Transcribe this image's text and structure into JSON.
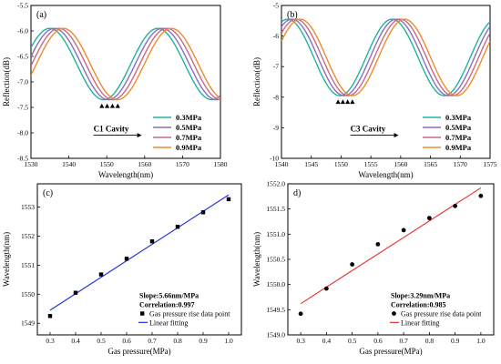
{
  "chart_data": [
    {
      "panel": "(a)",
      "type": "line",
      "xlabel": "Wavelength(nm)",
      "ylabel": "Reflection(dB)",
      "xlim": [
        1530,
        1580
      ],
      "ylim": [
        -8.5,
        -5.5
      ],
      "xticks": [
        "1530",
        "1540",
        "1550",
        "1560",
        "1570",
        "1580"
      ],
      "yticks": [
        "-8.5",
        "-8.0",
        "-7.5",
        "-7.0",
        "-6.5",
        "-6.0",
        "-5.5"
      ],
      "model": {
        "period_nm": 28.5,
        "min_db": -7.35,
        "max_db": -5.95
      },
      "series": [
        {
          "name": "0.3MPa",
          "color": "#1bb597",
          "dip_nm": 1549.2
        },
        {
          "name": "0.5MPa",
          "color": "#8a6cc8",
          "dip_nm": 1550.4
        },
        {
          "name": "0.7MPa",
          "color": "#c86a82",
          "dip_nm": 1551.6
        },
        {
          "name": "0.9MPa",
          "color": "#ef8a2b",
          "dip_nm": 1552.8
        }
      ],
      "markers": [
        {
          "x": 1548.7,
          "y": -7.47
        },
        {
          "x": 1550.1,
          "y": -7.47
        },
        {
          "x": 1551.5,
          "y": -7.47
        },
        {
          "x": 1552.9,
          "y": -7.47
        }
      ],
      "annotation": "C1 Cavity",
      "legend": "bottom-right"
    },
    {
      "panel": "(b)",
      "type": "line",
      "xlabel": "Wavelength(nm)",
      "ylabel": "Reflection(dB)",
      "xlim": [
        1540,
        1575
      ],
      "ylim": [
        -10,
        -5
      ],
      "xticks": [
        "1540",
        "1545",
        "1550",
        "1555",
        "1560",
        "1565",
        "1570",
        "1575"
      ],
      "yticks": [
        "-10",
        "-9",
        "-8",
        "-7",
        "-6",
        "-5"
      ],
      "model": {
        "period_nm": 17.5,
        "min_db": -7.95,
        "max_db": -5.45
      },
      "series": [
        {
          "name": "0.3MPa",
          "color": "#1bb597",
          "dip_nm": 1549.8
        },
        {
          "name": "0.5MPa",
          "color": "#8a6cc8",
          "dip_nm": 1550.5
        },
        {
          "name": "0.7MPa",
          "color": "#c86a82",
          "dip_nm": 1551.2
        },
        {
          "name": "0.9MPa",
          "color": "#ef8a2b",
          "dip_nm": 1551.9
        }
      ],
      "markers": [
        {
          "x": 1549.5,
          "y": -8.15
        },
        {
          "x": 1550.3,
          "y": -8.15
        },
        {
          "x": 1551.1,
          "y": -8.15
        },
        {
          "x": 1551.9,
          "y": -8.15
        }
      ],
      "annotation": "C3 Cavity",
      "legend": "bottom-right"
    },
    {
      "panel": "(c)",
      "type": "scatter",
      "xlabel": "Gas pressure(MPa)",
      "ylabel": "Wavelength(nm)",
      "xlim": [
        0.25,
        1.05
      ],
      "ylim": [
        1548.6,
        1553.8
      ],
      "xticks": [
        "0.3",
        "0.4",
        "0.5",
        "0.6",
        "0.7",
        "0.8",
        "0.9",
        "1.0"
      ],
      "yticks": [
        "1549",
        "1550",
        "1551",
        "1552",
        "1553"
      ],
      "points": [
        {
          "x": 0.3,
          "y": 1549.25
        },
        {
          "x": 0.4,
          "y": 1550.05
        },
        {
          "x": 0.5,
          "y": 1550.68
        },
        {
          "x": 0.6,
          "y": 1551.22
        },
        {
          "x": 0.7,
          "y": 1551.82
        },
        {
          "x": 0.8,
          "y": 1552.32
        },
        {
          "x": 0.9,
          "y": 1552.82
        },
        {
          "x": 1.0,
          "y": 1553.27
        }
      ],
      "fit": {
        "x0": 0.3,
        "y0": 1549.45,
        "x1": 1.0,
        "y1": 1553.42,
        "color": "#1f2fd6"
      },
      "marker_shape": "square",
      "slope_text": "Slope:5.66nm/MPa",
      "corr_text": "Correlation:0.997",
      "legend_points": "Gas pressure rise data point",
      "legend_fit": "Linear fitting",
      "legend": "bottom-right"
    },
    {
      "panel": "d)",
      "type": "scatter",
      "xlabel": "Gas pressure(MPa)",
      "ylabel": "Wavelength(nm)",
      "xlim": [
        0.25,
        1.05
      ],
      "ylim": [
        1549.0,
        1552.0
      ],
      "xticks": [
        "0.3",
        "0.4",
        "0.5",
        "0.6",
        "0.7",
        "0.8",
        "0.9",
        "1.0"
      ],
      "yticks": [
        "1549.0",
        "1549.5",
        "1550.0",
        "1550.5",
        "1551.0",
        "1551.5",
        "1552.0"
      ],
      "points": [
        {
          "x": 0.3,
          "y": 1549.42
        },
        {
          "x": 0.4,
          "y": 1549.92
        },
        {
          "x": 0.5,
          "y": 1550.4
        },
        {
          "x": 0.6,
          "y": 1550.8
        },
        {
          "x": 0.7,
          "y": 1551.08
        },
        {
          "x": 0.8,
          "y": 1551.32
        },
        {
          "x": 0.9,
          "y": 1551.56
        },
        {
          "x": 1.0,
          "y": 1551.76
        }
      ],
      "fit": {
        "x0": 0.3,
        "y0": 1549.62,
        "x1": 1.0,
        "y1": 1551.92,
        "color": "#e8312e"
      },
      "marker_shape": "circle",
      "slope_text": "Slope:3.29nm/MPa",
      "corr_text": "Correlation:0.985",
      "legend_points": "Gas pressure rise data point",
      "legend_fit": "Linear fitting",
      "legend": "bottom-right"
    }
  ]
}
